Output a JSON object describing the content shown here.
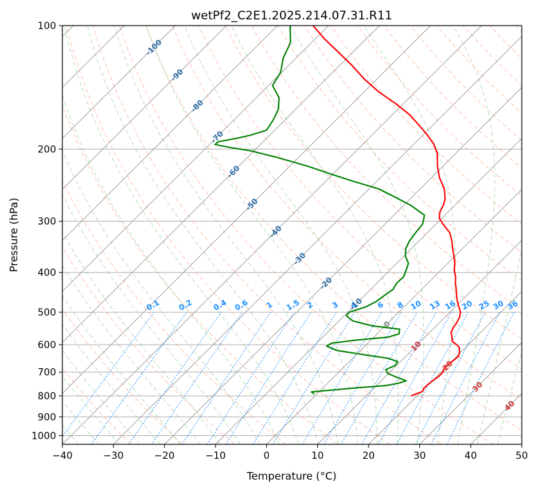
{
  "chart_data": {
    "type": "line",
    "title": "wetPf2_C2E1.2025.214.07.31.R11",
    "xlabel": "Temperature (°C)",
    "ylabel": "Pressure (hPa)",
    "xlim": [
      -40,
      50
    ],
    "ylim": [
      1050,
      100
    ],
    "y_scale": "log",
    "skew_degrees": 45,
    "grid": true,
    "x_ticks": [
      -40,
      -30,
      -20,
      -10,
      0,
      10,
      20,
      30,
      40,
      50
    ],
    "y_ticks": [
      100,
      200,
      300,
      400,
      500,
      600,
      700,
      800,
      900,
      1000
    ],
    "series": [
      {
        "color": "#ff0000",
        "pressure": [
          800,
          790,
          780,
          765,
          750,
          735,
          720,
          700,
          685,
          670,
          655,
          640,
          625,
          610,
          600,
          590,
          575,
          560,
          545,
          530,
          515,
          500,
          485,
          470,
          455,
          440,
          425,
          410,
          395,
          380,
          365,
          350,
          335,
          320,
          305,
          295,
          285,
          275,
          265,
          250,
          235,
          220,
          205,
          195,
          185,
          175,
          165,
          155,
          145,
          135,
          125,
          115,
          108,
          100
        ],
        "temperature": [
          18.8,
          19.5,
          20.2,
          19.8,
          19.9,
          20.1,
          20.4,
          20.4,
          19.9,
          19.9,
          20.2,
          20.3,
          19.7,
          18.8,
          17.7,
          16.3,
          15.3,
          14.2,
          13.7,
          13.4,
          12.9,
          12.1,
          10.7,
          9.3,
          8.0,
          6.8,
          5.4,
          4.2,
          2.6,
          1.4,
          -0.2,
          -1.9,
          -3.6,
          -5.6,
          -8.6,
          -10.5,
          -11.6,
          -12.2,
          -13.1,
          -15.3,
          -18.4,
          -21.1,
          -23.6,
          -26.0,
          -29.1,
          -32.7,
          -36.6,
          -41.5,
          -47.2,
          -52.5,
          -57.6,
          -63.5,
          -68.0,
          -73.0
        ]
      },
      {
        "color": "#008000",
        "pressure": [
          792,
          782,
          775,
          765,
          755,
          745,
          735,
          720,
          705,
          690,
          675,
          660,
          648,
          635,
          620,
          605,
          595,
          585,
          575,
          565,
          550,
          540,
          525,
          510,
          500,
          485,
          470,
          455,
          440,
          425,
          410,
          395,
          380,
          365,
          350,
          335,
          320,
          305,
          290,
          275,
          260,
          250,
          240,
          230,
          220,
          210,
          202,
          198,
          195,
          192,
          188,
          185,
          180,
          170,
          160,
          150,
          140,
          130,
          120,
          110,
          100
        ],
        "temperature": [
          -0.5,
          -1.5,
          1.8,
          6.4,
          11.8,
          13.9,
          14.9,
          12.3,
          9.8,
          8.7,
          9.7,
          9.5,
          7.0,
          1.6,
          -4.6,
          -7.5,
          -7.1,
          -3.0,
          2.8,
          4.3,
          3.5,
          -2.5,
          -7.3,
          -9.6,
          -9.7,
          -7.5,
          -6.5,
          -6.1,
          -5.6,
          -6.1,
          -6.0,
          -6.8,
          -7.7,
          -9.7,
          -11.1,
          -11.9,
          -12.3,
          -12.6,
          -14.0,
          -18.4,
          -24.1,
          -28.2,
          -34.4,
          -40.5,
          -46.6,
          -53.9,
          -60.7,
          -65.6,
          -68.9,
          -68.8,
          -65.6,
          -63.8,
          -61.6,
          -62.3,
          -63.4,
          -65.5,
          -69.2,
          -70.2,
          -72.5,
          -74.1,
          -77.5
        ]
      }
    ],
    "reference_lines": {
      "isotherms_colour": "#999999",
      "dry_adiabats_colour": "#ff8c69",
      "moist_adiabats_colour": "#7fbf7f",
      "mixing_ratio_colour": "#1e90ff",
      "mixing_ratio_labels": [
        "0.1",
        "0.2",
        "0.4",
        "0.6",
        "1",
        "1.5",
        "2",
        "3",
        "4",
        "6",
        "8",
        "10",
        "13",
        "16",
        "20",
        "25",
        "30",
        "36"
      ],
      "mixing_ratio_values": [
        0.1,
        0.2,
        0.4,
        0.6,
        1,
        1.5,
        2,
        3,
        4,
        6,
        8,
        10,
        13,
        16,
        20,
        25,
        30,
        36
      ],
      "isotherm_labels_blue": [
        "-100",
        "-90",
        "-80",
        "-70",
        "-60",
        "-50",
        "-40",
        "-30",
        "-20",
        "-10"
      ],
      "isotherm_label_grey": "0",
      "isotherm_labels_red": [
        "10",
        "20",
        "30",
        "40"
      ]
    }
  }
}
